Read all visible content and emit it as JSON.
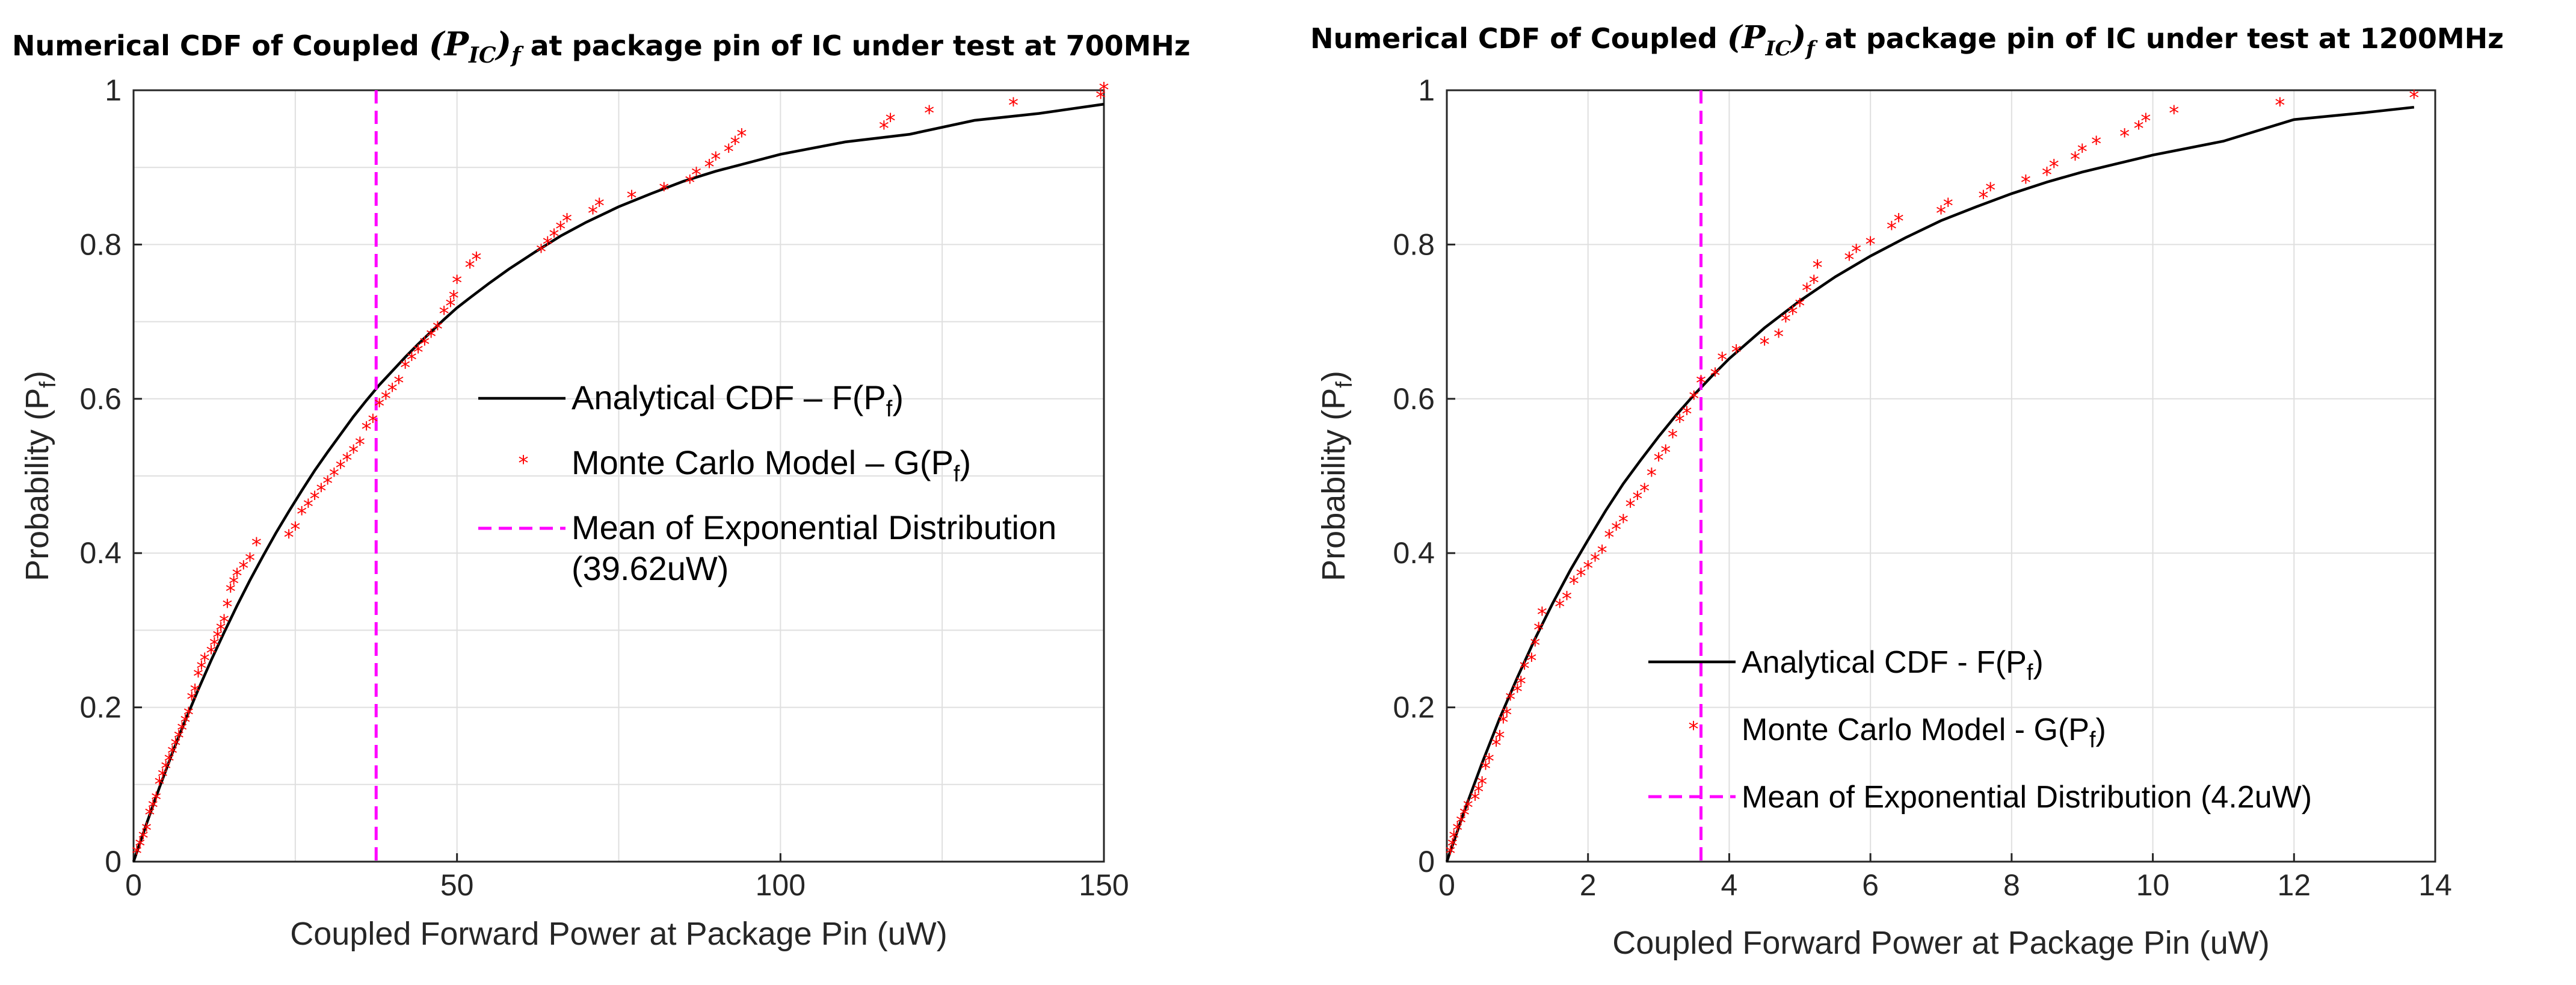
{
  "chart_data": [
    {
      "type": "line",
      "title_prefix": "Numerical CDF of Coupled ",
      "title_symbol": "(P",
      "title_sub": "IC",
      "title_close": ")",
      "title_sub2": "f",
      "title_suffix": " at package pin of IC under test at 700MHz",
      "xlabel": "Coupled Forward Power at Package Pin (uW)",
      "ylabel_main": "Probability (P",
      "ylabel_sub": "f",
      "ylabel_close": ")",
      "xlim": [
        0,
        150
      ],
      "ylim": [
        0,
        1
      ],
      "xticks": [
        0,
        50,
        100,
        150
      ],
      "xtick_labels": [
        "0",
        "50",
        "100",
        "150"
      ],
      "yticks": [
        0,
        0.2,
        0.4,
        0.6,
        0.8,
        1
      ],
      "ytick_labels": [
        "0",
        "0.2",
        "0.4",
        "0.6",
        "0.8",
        "1"
      ],
      "xgrid": [
        0,
        25,
        50,
        75,
        100,
        125,
        150
      ],
      "ygrid": [
        0,
        0.1,
        0.2,
        0.3,
        0.4,
        0.5,
        0.6,
        0.7,
        0.8,
        0.9,
        1
      ],
      "mean": 39.62,
      "mean_line_x": 37.5,
      "legend": [
        {
          "name": "Analytical CDF – F(P",
          "sub": "f",
          "close": ")",
          "style": "line"
        },
        {
          "name": "Monte Carlo Model – G(P",
          "sub": "f",
          "close": ")",
          "style": "marker"
        },
        {
          "name": "Mean of Exponential Distribution",
          "line2": "(39.62uW)",
          "style": "dashed"
        }
      ],
      "series": [
        {
          "name": "Analytical CDF",
          "style": "line",
          "x": [
            0,
            2,
            4,
            6,
            8,
            10,
            12,
            14,
            16,
            18,
            20,
            22,
            24,
            26,
            28,
            30,
            32,
            34,
            36,
            38,
            40,
            42,
            44,
            46,
            48,
            50,
            52,
            55,
            58,
            62,
            66,
            70,
            75,
            80,
            85,
            90,
            95,
            100,
            110,
            120,
            130,
            140,
            150
          ],
          "y": [
            0,
            0.049,
            0.096,
            0.141,
            0.183,
            0.223,
            0.261,
            0.297,
            0.332,
            0.365,
            0.396,
            0.426,
            0.454,
            0.481,
            0.507,
            0.531,
            0.554,
            0.577,
            0.598,
            0.618,
            0.636,
            0.654,
            0.671,
            0.687,
            0.703,
            0.718,
            0.731,
            0.75,
            0.768,
            0.79,
            0.811,
            0.829,
            0.849,
            0.866,
            0.882,
            0.895,
            0.906,
            0.917,
            0.933,
            0.943,
            0.961,
            0.97,
            0.982
          ]
        },
        {
          "name": "Monte Carlo Model",
          "style": "marker",
          "x": [
            0.5,
            1,
            1.5,
            2,
            2.5,
            3,
            3.5,
            4,
            4.5,
            5,
            5.5,
            6,
            6.5,
            7,
            7.5,
            8,
            8.5,
            9,
            9.5,
            10,
            10.5,
            11,
            12,
            12.5,
            13,
            13.5,
            14,
            14.5,
            15,
            15.5,
            16,
            17,
            18,
            19,
            24,
            25,
            26,
            27,
            28,
            29,
            30,
            31,
            32,
            33,
            34,
            35,
            36,
            37,
            38,
            39,
            40,
            41,
            42,
            43,
            44,
            45,
            46,
            47,
            48,
            49,
            49.5,
            50,
            52,
            53,
            63,
            64,
            65,
            66,
            67,
            71,
            72,
            77,
            82,
            86,
            87,
            89,
            90,
            92,
            93,
            94,
            116,
            117,
            123,
            136,
            149.5,
            150
          ],
          "y": [
            0.01,
            0.02,
            0.03,
            0.04,
            0.06,
            0.07,
            0.08,
            0.1,
            0.11,
            0.12,
            0.13,
            0.14,
            0.15,
            0.16,
            0.17,
            0.18,
            0.19,
            0.21,
            0.22,
            0.24,
            0.25,
            0.26,
            0.27,
            0.28,
            0.29,
            0.3,
            0.31,
            0.33,
            0.35,
            0.36,
            0.37,
            0.38,
            0.39,
            0.41,
            0.42,
            0.43,
            0.45,
            0.46,
            0.47,
            0.48,
            0.49,
            0.5,
            0.51,
            0.52,
            0.53,
            0.54,
            0.56,
            0.57,
            0.59,
            0.6,
            0.61,
            0.62,
            0.64,
            0.65,
            0.66,
            0.67,
            0.68,
            0.69,
            0.71,
            0.72,
            0.73,
            0.75,
            0.77,
            0.78,
            0.79,
            0.8,
            0.81,
            0.82,
            0.83,
            0.84,
            0.85,
            0.86,
            0.87,
            0.88,
            0.89,
            0.9,
            0.91,
            0.92,
            0.93,
            0.94,
            0.95,
            0.96,
            0.97,
            0.98,
            0.99,
            1.0
          ]
        }
      ]
    },
    {
      "type": "line",
      "title_prefix": "Numerical CDF of Coupled ",
      "title_symbol": "(P",
      "title_sub": "IC",
      "title_close": ")",
      "title_sub2": "f",
      "title_suffix": " at package pin of IC under test at 1200MHz",
      "xlabel": "Coupled Forward Power at Package Pin (uW)",
      "ylabel_main": "Probability (P",
      "ylabel_sub": "f",
      "ylabel_close": ")",
      "xlim": [
        0,
        14
      ],
      "ylim": [
        0,
        1
      ],
      "xticks": [
        0,
        2,
        4,
        6,
        8,
        10,
        12,
        14
      ],
      "xtick_labels": [
        "0",
        "2",
        "4",
        "6",
        "8",
        "10",
        "12",
        "14"
      ],
      "yticks": [
        0,
        0.2,
        0.4,
        0.6,
        0.8,
        1
      ],
      "ytick_labels": [
        "0",
        "0.2",
        "0.4",
        "0.6",
        "0.8",
        "1"
      ],
      "xgrid": [
        0,
        2,
        4,
        6,
        8,
        10,
        12,
        14
      ],
      "ygrid": [
        0,
        0.2,
        0.4,
        0.6,
        0.8,
        1
      ],
      "mean": 4.2,
      "mean_line_x": 3.6,
      "legend": [
        {
          "name": "Analytical CDF - F(P",
          "sub": "f",
          "close": ")",
          "style": "line"
        },
        {
          "name": "Monte Carlo Model - G(P",
          "sub": "f",
          "close": ")",
          "style": "marker"
        },
        {
          "name": "Mean of Exponential Distribution (4.2uW)",
          "style": "dashed"
        }
      ],
      "series": [
        {
          "name": "Analytical CDF",
          "style": "line",
          "x": [
            0,
            0.25,
            0.5,
            0.75,
            1,
            1.25,
            1.5,
            1.75,
            2,
            2.25,
            2.5,
            2.75,
            3,
            3.25,
            3.5,
            3.75,
            4,
            4.5,
            5,
            5.5,
            6,
            6.5,
            7,
            7.5,
            8,
            8.5,
            9,
            9.5,
            10,
            11,
            12,
            13,
            13.7
          ],
          "y": [
            0,
            0.066,
            0.128,
            0.186,
            0.239,
            0.289,
            0.335,
            0.378,
            0.417,
            0.455,
            0.49,
            0.521,
            0.551,
            0.579,
            0.605,
            0.629,
            0.652,
            0.692,
            0.727,
            0.758,
            0.785,
            0.809,
            0.831,
            0.849,
            0.866,
            0.881,
            0.894,
            0.905,
            0.916,
            0.934,
            0.962,
            0.971,
            0.978
          ]
        },
        {
          "name": "Monte Carlo Model",
          "style": "marker",
          "x": [
            0.05,
            0.08,
            0.1,
            0.15,
            0.2,
            0.25,
            0.3,
            0.4,
            0.45,
            0.5,
            0.55,
            0.6,
            0.7,
            0.75,
            0.8,
            0.85,
            0.9,
            1.0,
            1.05,
            1.1,
            1.2,
            1.25,
            1.3,
            1.35,
            1.6,
            1.7,
            1.8,
            1.9,
            2.0,
            2.1,
            2.2,
            2.3,
            2.4,
            2.5,
            2.6,
            2.7,
            2.8,
            2.9,
            3.0,
            3.1,
            3.2,
            3.3,
            3.4,
            3.5,
            3.6,
            3.8,
            3.9,
            4.1,
            4.5,
            4.7,
            4.8,
            4.9,
            5.0,
            5.1,
            5.2,
            5.25,
            5.7,
            5.8,
            6.0,
            6.3,
            6.4,
            7.0,
            7.1,
            7.6,
            7.7,
            8.2,
            8.5,
            8.6,
            8.9,
            9.0,
            9.2,
            9.6,
            9.8,
            9.9,
            10.3,
            11.8,
            13.7
          ],
          "y": [
            0.01,
            0.02,
            0.03,
            0.04,
            0.05,
            0.06,
            0.07,
            0.08,
            0.09,
            0.1,
            0.12,
            0.13,
            0.15,
            0.16,
            0.18,
            0.19,
            0.21,
            0.22,
            0.23,
            0.25,
            0.26,
            0.28,
            0.3,
            0.32,
            0.33,
            0.34,
            0.36,
            0.37,
            0.38,
            0.39,
            0.4,
            0.42,
            0.43,
            0.44,
            0.46,
            0.47,
            0.48,
            0.5,
            0.52,
            0.53,
            0.55,
            0.57,
            0.58,
            0.6,
            0.62,
            0.63,
            0.65,
            0.66,
            0.67,
            0.68,
            0.7,
            0.71,
            0.72,
            0.74,
            0.75,
            0.77,
            0.78,
            0.79,
            0.8,
            0.82,
            0.83,
            0.84,
            0.85,
            0.86,
            0.87,
            0.88,
            0.89,
            0.9,
            0.91,
            0.92,
            0.93,
            0.94,
            0.95,
            0.96,
            0.97,
            0.98,
            0.99
          ]
        }
      ]
    }
  ]
}
